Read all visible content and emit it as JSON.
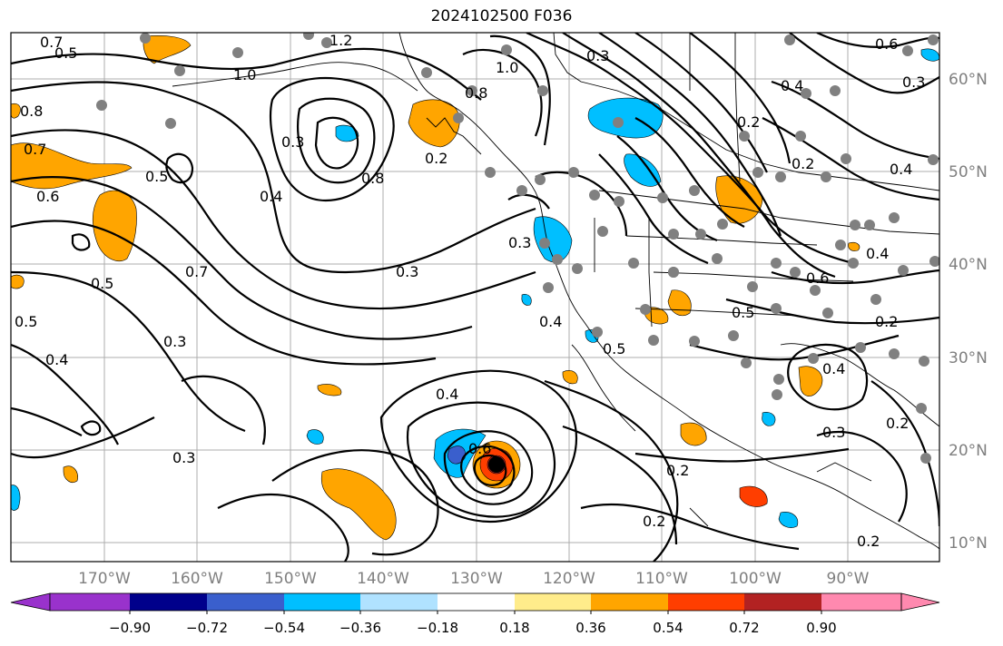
{
  "title": "2024102500 F036",
  "map": {
    "lon_labels": [
      "170°W",
      "160°W",
      "150°W",
      "140°W",
      "130°W",
      "120°W",
      "110°W",
      "100°W",
      "90°W"
    ],
    "lat_labels": [
      "60°N",
      "50°N",
      "40°N",
      "30°N",
      "20°N",
      "10°N"
    ],
    "contour_labels": [
      "0.7",
      "0.5",
      "0.8",
      "0.7",
      "0.6",
      "0.5",
      "0.4",
      "0.3",
      "0.5",
      "0.4",
      "0.3",
      "1.2",
      "1.0",
      "0.3",
      "0.4",
      "0.8",
      "0.7",
      "0.5",
      "0.3",
      "0.2",
      "0.2",
      "0.3",
      "1.0",
      "0.8",
      "0.2",
      "0.6",
      "0.3",
      "0.4",
      "0.2",
      "0.4",
      "0.4",
      "0.6",
      "0.2",
      "0.5",
      "0.5",
      "0.3",
      "0.4",
      "0.2",
      "0.2",
      "0.6",
      "0.3",
      "0.4",
      "0.2"
    ],
    "colors": {
      "purple": "#9932cc",
      "navy": "#00008b",
      "royal": "#3a5fcd",
      "sky": "#00bfff",
      "pale_blue": "#b0e2ff",
      "white": "#ffffff",
      "yellow": "#ffec8b",
      "orange": "#ffa500",
      "red_orange": "#ff3e00",
      "dark_red": "#b22222",
      "pink": "#ff89af"
    }
  },
  "colorbar": {
    "ticks": [
      "−0.90",
      "−0.72",
      "−0.54",
      "−0.36",
      "−0.18",
      "0.18",
      "0.36",
      "0.54",
      "0.72",
      "0.90"
    ]
  }
}
